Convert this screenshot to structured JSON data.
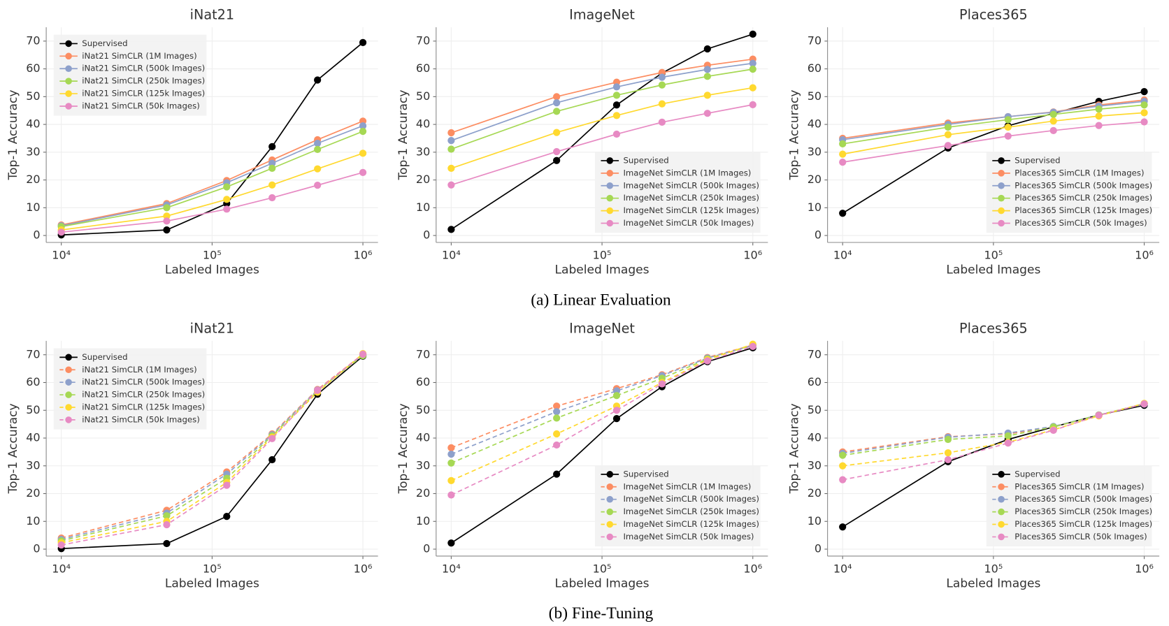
{
  "captions": [
    "(a) Linear Evaluation",
    "(b) Fine-Tuning"
  ],
  "chart_data": [
    {
      "type": "line",
      "title": "iNat21",
      "xlabel": "Labeled Images",
      "ylabel": "Top-1 Accuracy",
      "xscale": "log",
      "grid": true,
      "legend": "upper left",
      "dashed": false,
      "x": [
        10000,
        50000,
        125000,
        250000,
        500000,
        1000000
      ],
      "xlim": [
        7943,
        1258925
      ],
      "xticks": [
        {
          "value": 10000,
          "label": "10⁴"
        },
        {
          "value": 100000,
          "label": "10⁵"
        },
        {
          "value": 1000000,
          "label": "10⁶"
        }
      ],
      "ylim": [
        -2.5,
        75
      ],
      "yticks": [
        0,
        10,
        20,
        30,
        40,
        50,
        60,
        70
      ],
      "series": [
        {
          "name": "Supervised",
          "color": "#000000",
          "values": [
            0.2,
            2,
            11.5,
            32,
            56,
            69.5
          ]
        },
        {
          "name": "iNat21 SimCLR (1M Images)",
          "color": "#fc8d62",
          "values": [
            3.8,
            11.5,
            19.8,
            27.2,
            34.5,
            41.2
          ]
        },
        {
          "name": "iNat21 SimCLR (500k Images)",
          "color": "#8da0cb",
          "values": [
            3.5,
            11,
            19,
            26,
            33.2,
            39.5
          ]
        },
        {
          "name": "iNat21 SimCLR (250k Images)",
          "color": "#a6d854",
          "values": [
            3.2,
            10,
            17.5,
            24.2,
            31,
            37.5
          ]
        },
        {
          "name": "iNat21 SimCLR (125k Images)",
          "color": "#ffd92f",
          "values": [
            2,
            7,
            13,
            18.2,
            24,
            29.6
          ]
        },
        {
          "name": "iNat21 SimCLR (50k Images)",
          "color": "#e78ac3",
          "values": [
            1.2,
            5.2,
            9.5,
            13.6,
            18.1,
            22.7
          ]
        }
      ]
    },
    {
      "type": "line",
      "title": "ImageNet",
      "xlabel": "Labeled Images",
      "ylabel": "Top-1 Accuracy",
      "xscale": "log",
      "grid": true,
      "legend": "lower right",
      "dashed": false,
      "x": [
        10000,
        50000,
        125000,
        250000,
        500000,
        1000000
      ],
      "xlim": [
        7943,
        1258925
      ],
      "xticks": [
        {
          "value": 10000,
          "label": "10⁴"
        },
        {
          "value": 100000,
          "label": "10⁵"
        },
        {
          "value": 1000000,
          "label": "10⁶"
        }
      ],
      "ylim": [
        -2.5,
        75
      ],
      "yticks": [
        0,
        10,
        20,
        30,
        40,
        50,
        60,
        70
      ],
      "series": [
        {
          "name": "Supervised",
          "color": "#000000",
          "values": [
            2.2,
            27,
            47,
            58.5,
            67.2,
            72.5
          ]
        },
        {
          "name": "ImageNet SimCLR (1M Images)",
          "color": "#fc8d62",
          "values": [
            37,
            50,
            55.2,
            58.7,
            61.3,
            63.5
          ]
        },
        {
          "name": "ImageNet SimCLR (500k Images)",
          "color": "#8da0cb",
          "values": [
            34.2,
            47.8,
            53.5,
            57,
            59.8,
            62
          ]
        },
        {
          "name": "ImageNet SimCLR (250k Images)",
          "color": "#a6d854",
          "values": [
            31.1,
            44.7,
            50.5,
            54.2,
            57.3,
            59.9
          ]
        },
        {
          "name": "ImageNet SimCLR (125k Images)",
          "color": "#ffd92f",
          "values": [
            24.2,
            37.1,
            43.2,
            47.4,
            50.5,
            53.2
          ]
        },
        {
          "name": "ImageNet SimCLR (50k Images)",
          "color": "#e78ac3",
          "values": [
            18.2,
            30.2,
            36.5,
            40.8,
            44,
            47.1
          ]
        }
      ]
    },
    {
      "type": "line",
      "title": "Places365",
      "xlabel": "Labeled Images",
      "ylabel": "Top-1 Accuracy",
      "xscale": "log",
      "grid": true,
      "legend": "lower right",
      "dashed": false,
      "x": [
        10000,
        50000,
        125000,
        250000,
        500000,
        1000000
      ],
      "xlim": [
        7943,
        1258925
      ],
      "xticks": [
        {
          "value": 10000,
          "label": "10⁴"
        },
        {
          "value": 100000,
          "label": "10⁵"
        },
        {
          "value": 1000000,
          "label": "10⁶"
        }
      ],
      "ylim": [
        -2.5,
        75
      ],
      "yticks": [
        0,
        10,
        20,
        30,
        40,
        50,
        60,
        70
      ],
      "series": [
        {
          "name": "Supervised",
          "color": "#000000",
          "values": [
            8,
            31.5,
            39.5,
            44,
            48.3,
            51.8
          ]
        },
        {
          "name": "Places365 SimCLR (1M Images)",
          "color": "#fc8d62",
          "values": [
            35,
            40.5,
            42.8,
            44.5,
            47,
            48.8
          ]
        },
        {
          "name": "Places365 SimCLR (500k Images)",
          "color": "#8da0cb",
          "values": [
            34.5,
            40,
            42.8,
            44.4,
            46.6,
            48.3
          ]
        },
        {
          "name": "Places365 SimCLR (250k Images)",
          "color": "#a6d854",
          "values": [
            33,
            39,
            41.7,
            43.6,
            45.5,
            47
          ]
        },
        {
          "name": "Places365 SimCLR (125k Images)",
          "color": "#ffd92f",
          "values": [
            29.3,
            36.3,
            39,
            41.2,
            43,
            44.2
          ]
        },
        {
          "name": "Places365 SimCLR (50k Images)",
          "color": "#e78ac3",
          "values": [
            26.4,
            32.4,
            35.8,
            37.8,
            39.6,
            40.9
          ]
        }
      ]
    },
    {
      "type": "line",
      "title": "iNat21",
      "xlabel": "Labeled Images",
      "ylabel": "Top-1 Accuracy",
      "xscale": "log",
      "grid": true,
      "legend": "upper left",
      "dashed": true,
      "x": [
        10000,
        50000,
        125000,
        250000,
        500000,
        1000000
      ],
      "xlim": [
        7943,
        1258925
      ],
      "xticks": [
        {
          "value": 10000,
          "label": "10⁴"
        },
        {
          "value": 100000,
          "label": "10⁵"
        },
        {
          "value": 1000000,
          "label": "10⁶"
        }
      ],
      "ylim": [
        -2.5,
        75
      ],
      "yticks": [
        0,
        10,
        20,
        30,
        40,
        50,
        60,
        70
      ],
      "series": [
        {
          "name": "Supervised",
          "color": "#000000",
          "values": [
            0.2,
            2,
            11.8,
            32.2,
            55.8,
            69.5
          ]
        },
        {
          "name": "iNat21 SimCLR (1M Images)",
          "color": "#fc8d62",
          "values": [
            4,
            14,
            27.8,
            41.5,
            57.5,
            70.2
          ]
        },
        {
          "name": "iNat21 SimCLR (500k Images)",
          "color": "#8da0cb",
          "values": [
            3.5,
            13,
            27,
            41.2,
            57.3,
            70
          ]
        },
        {
          "name": "iNat21 SimCLR (250k Images)",
          "color": "#a6d854",
          "values": [
            3,
            12,
            25.5,
            40.8,
            57,
            69.7
          ]
        },
        {
          "name": "iNat21 SimCLR (125k Images)",
          "color": "#ffd92f",
          "values": [
            2.3,
            10,
            24,
            40.3,
            56.5,
            70.4
          ]
        },
        {
          "name": "iNat21 SimCLR (50k Images)",
          "color": "#e78ac3",
          "values": [
            1.5,
            8.8,
            23,
            39.8,
            57.2,
            70.2
          ]
        }
      ]
    },
    {
      "type": "line",
      "title": "ImageNet",
      "xlabel": "Labeled Images",
      "ylabel": "Top-1 Accuracy",
      "xscale": "log",
      "grid": true,
      "legend": "lower right",
      "dashed": true,
      "x": [
        10000,
        50000,
        125000,
        250000,
        500000,
        1000000
      ],
      "xlim": [
        7943,
        1258925
      ],
      "xticks": [
        {
          "value": 10000,
          "label": "10⁴"
        },
        {
          "value": 100000,
          "label": "10⁵"
        },
        {
          "value": 1000000,
          "label": "10⁶"
        }
      ],
      "ylim": [
        -2.5,
        75
      ],
      "yticks": [
        0,
        10,
        20,
        30,
        40,
        50,
        60,
        70
      ],
      "series": [
        {
          "name": "Supervised",
          "color": "#000000",
          "values": [
            2.2,
            27,
            47,
            58.5,
            67.5,
            72.5
          ]
        },
        {
          "name": "ImageNet SimCLR (1M Images)",
          "color": "#fc8d62",
          "values": [
            36.5,
            51.5,
            57.8,
            62.8,
            69,
            73.5
          ]
        },
        {
          "name": "ImageNet SimCLR (500k Images)",
          "color": "#8da0cb",
          "values": [
            34.2,
            49.5,
            57,
            62.5,
            68.8,
            73.3
          ]
        },
        {
          "name": "ImageNet SimCLR (250k Images)",
          "color": "#a6d854",
          "values": [
            31,
            47.2,
            55.3,
            61.5,
            68.5,
            73.5
          ]
        },
        {
          "name": "ImageNet SimCLR (125k Images)",
          "color": "#ffd92f",
          "values": [
            24.7,
            41.5,
            51.5,
            60,
            68.2,
            73.8
          ]
        },
        {
          "name": "ImageNet SimCLR (50k Images)",
          "color": "#e78ac3",
          "values": [
            19.5,
            37.5,
            50,
            59.5,
            67.8,
            73
          ]
        }
      ]
    },
    {
      "type": "line",
      "title": "Places365",
      "xlabel": "Labeled Images",
      "ylabel": "Top-1 Accuracy",
      "xscale": "log",
      "grid": true,
      "legend": "lower right",
      "dashed": true,
      "x": [
        10000,
        50000,
        125000,
        250000,
        500000,
        1000000
      ],
      "xlim": [
        7943,
        1258925
      ],
      "xticks": [
        {
          "value": 10000,
          "label": "10⁴"
        },
        {
          "value": 100000,
          "label": "10⁵"
        },
        {
          "value": 1000000,
          "label": "10⁶"
        }
      ],
      "ylim": [
        -2.5,
        75
      ],
      "yticks": [
        0,
        10,
        20,
        30,
        40,
        50,
        60,
        70
      ],
      "series": [
        {
          "name": "Supervised",
          "color": "#000000",
          "values": [
            8,
            31.5,
            39.5,
            44,
            48.3,
            51.8
          ]
        },
        {
          "name": "Places365 SimCLR (1M Images)",
          "color": "#fc8d62",
          "values": [
            35,
            40.5,
            41.5,
            44,
            48.2,
            52.4
          ]
        },
        {
          "name": "Places365 SimCLR (500k Images)",
          "color": "#8da0cb",
          "values": [
            34.5,
            40.3,
            41.8,
            44.2,
            48.3,
            52.2
          ]
        },
        {
          "name": "Places365 SimCLR (250k Images)",
          "color": "#a6d854",
          "values": [
            33.8,
            39.5,
            40.8,
            44,
            48.3,
            52.4
          ]
        },
        {
          "name": "Places365 SimCLR (125k Images)",
          "color": "#ffd92f",
          "values": [
            30,
            34.7,
            38.5,
            43,
            48,
            52.5
          ]
        },
        {
          "name": "Places365 SimCLR (50k Images)",
          "color": "#e78ac3",
          "values": [
            25,
            32.2,
            38.2,
            42.8,
            48.2,
            52.3
          ]
        }
      ]
    }
  ]
}
